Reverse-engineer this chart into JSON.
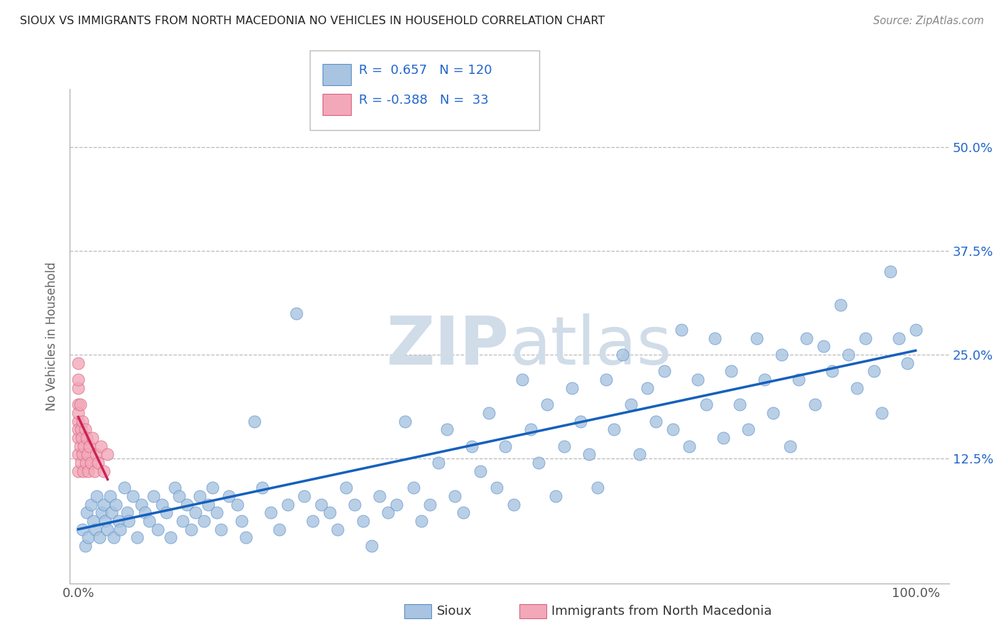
{
  "title": "SIOUX VS IMMIGRANTS FROM NORTH MACEDONIA NO VEHICLES IN HOUSEHOLD CORRELATION CHART",
  "source": "Source: ZipAtlas.com",
  "ylabel": "No Vehicles in Household",
  "color_sioux": "#a8c4e0",
  "color_macedonia": "#f2a8b8",
  "color_sioux_edge": "#5b8fc9",
  "color_macedonia_edge": "#d96080",
  "regression_sioux_color": "#1560bd",
  "regression_macedonia_color": "#cc2255",
  "watermark_color": "#d0dce8",
  "sioux_points": [
    [
      0.005,
      0.04
    ],
    [
      0.008,
      0.02
    ],
    [
      0.01,
      0.06
    ],
    [
      0.012,
      0.03
    ],
    [
      0.015,
      0.07
    ],
    [
      0.018,
      0.05
    ],
    [
      0.02,
      0.04
    ],
    [
      0.022,
      0.08
    ],
    [
      0.025,
      0.03
    ],
    [
      0.028,
      0.06
    ],
    [
      0.03,
      0.07
    ],
    [
      0.032,
      0.05
    ],
    [
      0.035,
      0.04
    ],
    [
      0.038,
      0.08
    ],
    [
      0.04,
      0.06
    ],
    [
      0.042,
      0.03
    ],
    [
      0.045,
      0.07
    ],
    [
      0.048,
      0.05
    ],
    [
      0.05,
      0.04
    ],
    [
      0.055,
      0.09
    ],
    [
      0.058,
      0.06
    ],
    [
      0.06,
      0.05
    ],
    [
      0.065,
      0.08
    ],
    [
      0.07,
      0.03
    ],
    [
      0.075,
      0.07
    ],
    [
      0.08,
      0.06
    ],
    [
      0.085,
      0.05
    ],
    [
      0.09,
      0.08
    ],
    [
      0.095,
      0.04
    ],
    [
      0.1,
      0.07
    ],
    [
      0.105,
      0.06
    ],
    [
      0.11,
      0.03
    ],
    [
      0.115,
      0.09
    ],
    [
      0.12,
      0.08
    ],
    [
      0.125,
      0.05
    ],
    [
      0.13,
      0.07
    ],
    [
      0.135,
      0.04
    ],
    [
      0.14,
      0.06
    ],
    [
      0.145,
      0.08
    ],
    [
      0.15,
      0.05
    ],
    [
      0.155,
      0.07
    ],
    [
      0.16,
      0.09
    ],
    [
      0.165,
      0.06
    ],
    [
      0.17,
      0.04
    ],
    [
      0.18,
      0.08
    ],
    [
      0.19,
      0.07
    ],
    [
      0.195,
      0.05
    ],
    [
      0.2,
      0.03
    ],
    [
      0.21,
      0.17
    ],
    [
      0.22,
      0.09
    ],
    [
      0.23,
      0.06
    ],
    [
      0.24,
      0.04
    ],
    [
      0.25,
      0.07
    ],
    [
      0.26,
      0.3
    ],
    [
      0.27,
      0.08
    ],
    [
      0.28,
      0.05
    ],
    [
      0.29,
      0.07
    ],
    [
      0.3,
      0.06
    ],
    [
      0.31,
      0.04
    ],
    [
      0.32,
      0.09
    ],
    [
      0.33,
      0.07
    ],
    [
      0.34,
      0.05
    ],
    [
      0.35,
      0.02
    ],
    [
      0.36,
      0.08
    ],
    [
      0.37,
      0.06
    ],
    [
      0.38,
      0.07
    ],
    [
      0.39,
      0.17
    ],
    [
      0.4,
      0.09
    ],
    [
      0.41,
      0.05
    ],
    [
      0.42,
      0.07
    ],
    [
      0.43,
      0.12
    ],
    [
      0.44,
      0.16
    ],
    [
      0.45,
      0.08
    ],
    [
      0.46,
      0.06
    ],
    [
      0.47,
      0.14
    ],
    [
      0.48,
      0.11
    ],
    [
      0.49,
      0.18
    ],
    [
      0.5,
      0.09
    ],
    [
      0.51,
      0.14
    ],
    [
      0.52,
      0.07
    ],
    [
      0.53,
      0.22
    ],
    [
      0.54,
      0.16
    ],
    [
      0.55,
      0.12
    ],
    [
      0.56,
      0.19
    ],
    [
      0.57,
      0.08
    ],
    [
      0.58,
      0.14
    ],
    [
      0.59,
      0.21
    ],
    [
      0.6,
      0.17
    ],
    [
      0.61,
      0.13
    ],
    [
      0.62,
      0.09
    ],
    [
      0.63,
      0.22
    ],
    [
      0.64,
      0.16
    ],
    [
      0.65,
      0.25
    ],
    [
      0.66,
      0.19
    ],
    [
      0.67,
      0.13
    ],
    [
      0.68,
      0.21
    ],
    [
      0.69,
      0.17
    ],
    [
      0.7,
      0.23
    ],
    [
      0.71,
      0.16
    ],
    [
      0.72,
      0.28
    ],
    [
      0.73,
      0.14
    ],
    [
      0.74,
      0.22
    ],
    [
      0.75,
      0.19
    ],
    [
      0.76,
      0.27
    ],
    [
      0.77,
      0.15
    ],
    [
      0.78,
      0.23
    ],
    [
      0.79,
      0.19
    ],
    [
      0.8,
      0.16
    ],
    [
      0.81,
      0.27
    ],
    [
      0.82,
      0.22
    ],
    [
      0.83,
      0.18
    ],
    [
      0.84,
      0.25
    ],
    [
      0.85,
      0.14
    ],
    [
      0.86,
      0.22
    ],
    [
      0.87,
      0.27
    ],
    [
      0.88,
      0.19
    ],
    [
      0.89,
      0.26
    ],
    [
      0.9,
      0.23
    ],
    [
      0.91,
      0.31
    ],
    [
      0.92,
      0.25
    ],
    [
      0.93,
      0.21
    ],
    [
      0.94,
      0.27
    ],
    [
      0.95,
      0.23
    ],
    [
      0.96,
      0.18
    ],
    [
      0.97,
      0.35
    ],
    [
      0.98,
      0.27
    ],
    [
      0.99,
      0.24
    ],
    [
      1.0,
      0.28
    ]
  ],
  "macedonia_points": [
    [
      0.0,
      0.21
    ],
    [
      0.0,
      0.19
    ],
    [
      0.0,
      0.24
    ],
    [
      0.0,
      0.17
    ],
    [
      0.0,
      0.15
    ],
    [
      0.0,
      0.13
    ],
    [
      0.0,
      0.22
    ],
    [
      0.0,
      0.11
    ],
    [
      0.0,
      0.18
    ],
    [
      0.0,
      0.16
    ],
    [
      0.002,
      0.14
    ],
    [
      0.002,
      0.19
    ],
    [
      0.003,
      0.12
    ],
    [
      0.003,
      0.16
    ],
    [
      0.004,
      0.15
    ],
    [
      0.005,
      0.13
    ],
    [
      0.005,
      0.17
    ],
    [
      0.006,
      0.11
    ],
    [
      0.007,
      0.14
    ],
    [
      0.008,
      0.16
    ],
    [
      0.009,
      0.12
    ],
    [
      0.01,
      0.15
    ],
    [
      0.011,
      0.13
    ],
    [
      0.012,
      0.11
    ],
    [
      0.013,
      0.14
    ],
    [
      0.015,
      0.12
    ],
    [
      0.017,
      0.15
    ],
    [
      0.019,
      0.11
    ],
    [
      0.021,
      0.13
    ],
    [
      0.024,
      0.12
    ],
    [
      0.027,
      0.14
    ],
    [
      0.03,
      0.11
    ],
    [
      0.035,
      0.13
    ]
  ],
  "regression_sioux": [
    0.0,
    0.04,
    1.0,
    0.255
  ],
  "regression_macedonia": [
    0.0,
    0.175,
    0.035,
    0.1
  ]
}
